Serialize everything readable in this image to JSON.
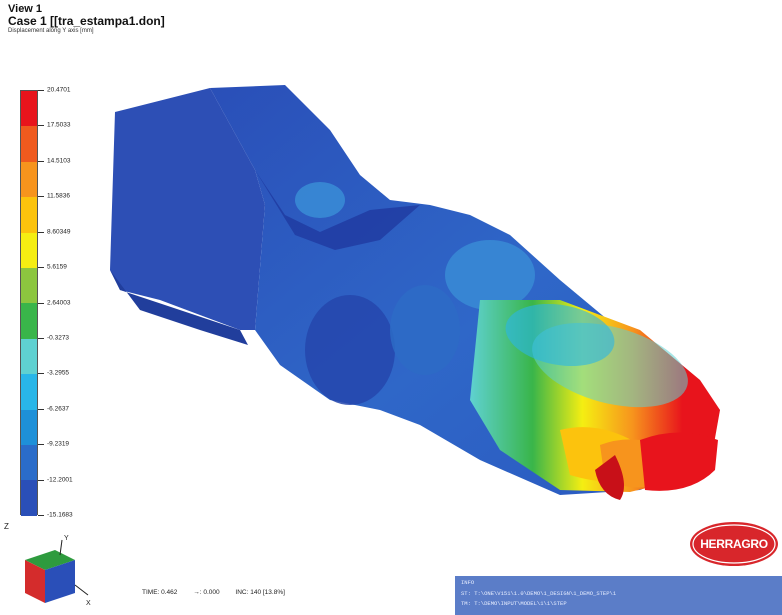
{
  "header": {
    "view": "View 1",
    "case": "Case 1  [[tra_estampa1.don]",
    "subtitle": "Displacement along Y axis [mm]"
  },
  "legend": {
    "colors": [
      "#e8141c",
      "#ef5a1e",
      "#f7941d",
      "#fcc30d",
      "#f5ee12",
      "#8cc63f",
      "#39b54a",
      "#5fd1d1",
      "#29b6e8",
      "#1e90d8",
      "#2a6cc9",
      "#2a4fb8"
    ],
    "labels": [
      "20.4701",
      "17.5033",
      "14.5103",
      "11.5836",
      "8.60349",
      "5.6159",
      "2.64003",
      "-0.3273",
      "-3.2955",
      "-6.2637",
      "-9.2319",
      "-12.2001",
      "-15.1683"
    ]
  },
  "status": {
    "time": "TIME: 0.462",
    "step": "→: 0.000",
    "inc": "INC: 140 [13.8%]"
  },
  "logo": {
    "text": "HERRAGRO"
  },
  "command_panel": {
    "lines": [
      "INFO",
      "ST:  T:\\ONE\\V151\\1.0\\DEMO\\1_DESIGN\\1_DEMO_STEP\\1",
      "TM:  T:\\DEMO\\INPUT\\MODEL\\1\\1\\STEP"
    ]
  },
  "triad": {
    "x_axis": "X",
    "y_axis": "Y",
    "z_axis": "Z"
  }
}
